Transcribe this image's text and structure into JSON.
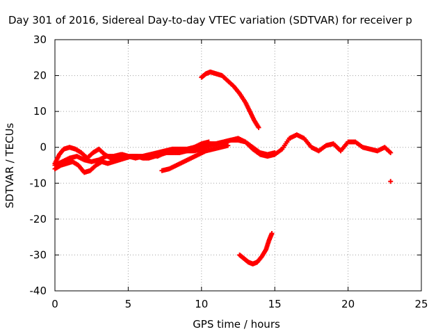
{
  "chart_data": {
    "type": "scatter",
    "title": "Day 301 of 2016, Sidereal Day-to-day VTEC variation (SDTVAR) for receiver p",
    "xlabel": "GPS time / hours",
    "ylabel": "SDTVAR / TECUs",
    "xlim": [
      0,
      25
    ],
    "ylim": [
      -40,
      30
    ],
    "xticks": [
      "0",
      "5",
      "10",
      "15",
      "20",
      "25"
    ],
    "yticks": [
      "30",
      "20",
      "10",
      "0",
      "-10",
      "-20",
      "-30",
      "-40"
    ],
    "grid": true,
    "legend": "none",
    "marker": "+",
    "color": "#ff0000",
    "series": [
      {
        "values": [
          [
            0,
            -4.5
          ],
          [
            0.3,
            -2
          ],
          [
            0.6,
            -0.5
          ],
          [
            1.0,
            0
          ],
          [
            1.4,
            -0.5
          ],
          [
            1.8,
            -1.5
          ],
          [
            2.2,
            -3
          ],
          [
            2.6,
            -1.5
          ],
          [
            3.0,
            -0.5
          ],
          [
            3.4,
            -2
          ],
          [
            3.8,
            -3
          ],
          [
            4.2,
            -2.5
          ],
          [
            4.6,
            -2
          ],
          [
            5.0,
            -2.5
          ],
          [
            5.5,
            -3
          ],
          [
            6.0,
            -2.5
          ],
          [
            6.5,
            -2
          ],
          [
            7.0,
            -2.5
          ],
          [
            7.5,
            -1.5
          ],
          [
            8.0,
            -1
          ],
          [
            8.5,
            -1
          ],
          [
            9.0,
            -1
          ],
          [
            9.5,
            -1
          ],
          [
            10.0,
            -0.5
          ],
          [
            10.5,
            0.5
          ],
          [
            11.0,
            1
          ],
          [
            11.5,
            1.5
          ],
          [
            12.0,
            2
          ],
          [
            12.5,
            2.5
          ],
          [
            13.0,
            1.5
          ],
          [
            13.5,
            -0.5
          ],
          [
            14.0,
            -2
          ],
          [
            14.5,
            -2.5
          ],
          [
            15.0,
            -2
          ],
          [
            15.5,
            -0.5
          ],
          [
            16.0,
            2.5
          ],
          [
            16.5,
            3.5
          ],
          [
            17.0,
            2.5
          ],
          [
            17.5,
            0
          ],
          [
            18.0,
            -1
          ],
          [
            18.5,
            0.5
          ],
          [
            19.0,
            1
          ],
          [
            19.5,
            -1
          ],
          [
            20.0,
            1.5
          ],
          [
            20.5,
            1.5
          ],
          [
            21.0,
            0
          ],
          [
            21.5,
            -0.5
          ],
          [
            22.0,
            -1
          ],
          [
            22.5,
            0
          ],
          [
            22.9,
            -1.5
          ]
        ]
      },
      {
        "values": [
          [
            0,
            -6
          ],
          [
            0.4,
            -5
          ],
          [
            0.8,
            -4.5
          ],
          [
            1.2,
            -4
          ],
          [
            1.6,
            -5
          ],
          [
            2.0,
            -7
          ],
          [
            2.4,
            -6.5
          ],
          [
            2.8,
            -5
          ],
          [
            3.2,
            -4
          ],
          [
            3.6,
            -4.5
          ],
          [
            4.0,
            -4
          ],
          [
            4.4,
            -3.5
          ],
          [
            4.8,
            -3
          ],
          [
            5.2,
            -2.5
          ],
          [
            5.6,
            -2.5
          ],
          [
            6.0,
            -3
          ],
          [
            6.4,
            -3
          ],
          [
            6.8,
            -2.5
          ],
          [
            7.2,
            -2
          ],
          [
            7.6,
            -1.5
          ],
          [
            8.0,
            -1.5
          ],
          [
            8.5,
            -1.5
          ],
          [
            9.0,
            -1
          ],
          [
            9.5,
            0
          ],
          [
            10.0,
            0.5
          ],
          [
            10.5,
            1
          ],
          [
            11.0,
            1
          ],
          [
            11.5,
            1.5
          ],
          [
            12.0,
            2
          ],
          [
            12.5,
            2
          ],
          [
            13.0,
            1.5
          ],
          [
            13.5,
            0
          ],
          [
            14.0,
            -1.5
          ],
          [
            14.5,
            -2
          ],
          [
            15.0,
            -1.5
          ]
        ]
      },
      {
        "values": [
          [
            0,
            -5
          ],
          [
            0.5,
            -4
          ],
          [
            1.0,
            -3
          ],
          [
            1.5,
            -2.5
          ],
          [
            2.0,
            -3.5
          ],
          [
            2.5,
            -4
          ],
          [
            3.0,
            -3.5
          ],
          [
            3.5,
            -2.5
          ],
          [
            4.0,
            -2.5
          ],
          [
            4.5,
            -2
          ],
          [
            5.0,
            -2.5
          ],
          [
            5.5,
            -2.5
          ],
          [
            6.0,
            -2.5
          ],
          [
            6.5,
            -2
          ],
          [
            7.0,
            -1.5
          ],
          [
            7.5,
            -1
          ],
          [
            8.0,
            -0.5
          ],
          [
            8.5,
            -0.5
          ],
          [
            9.0,
            -0.5
          ],
          [
            9.5,
            0
          ],
          [
            10.0,
            1
          ],
          [
            10.5,
            1.5
          ]
        ]
      },
      {
        "values": [
          [
            7.3,
            -6.5
          ],
          [
            7.8,
            -6
          ],
          [
            8.3,
            -5
          ],
          [
            8.8,
            -4
          ],
          [
            9.3,
            -3
          ],
          [
            9.8,
            -2
          ],
          [
            10.3,
            -1
          ],
          [
            10.8,
            -0.5
          ],
          [
            11.3,
            0
          ],
          [
            11.8,
            0.5
          ]
        ]
      },
      {
        "values": [
          [
            10.0,
            19.5
          ],
          [
            10.3,
            20.5
          ],
          [
            10.6,
            21
          ],
          [
            11.0,
            20.5
          ],
          [
            11.4,
            20
          ],
          [
            11.8,
            18.5
          ],
          [
            12.2,
            17
          ],
          [
            12.6,
            15
          ],
          [
            13.0,
            12.5
          ],
          [
            13.3,
            10
          ],
          [
            13.6,
            7.5
          ],
          [
            13.9,
            5.5
          ]
        ]
      },
      {
        "values": [
          [
            12.6,
            -30
          ],
          [
            12.9,
            -31
          ],
          [
            13.2,
            -32
          ],
          [
            13.5,
            -32.5
          ],
          [
            13.8,
            -32
          ],
          [
            14.1,
            -30.5
          ],
          [
            14.4,
            -28.5
          ],
          [
            14.6,
            -26
          ],
          [
            14.8,
            -24
          ]
        ]
      },
      {
        "values": [
          [
            22.9,
            -9.5
          ]
        ]
      }
    ]
  }
}
